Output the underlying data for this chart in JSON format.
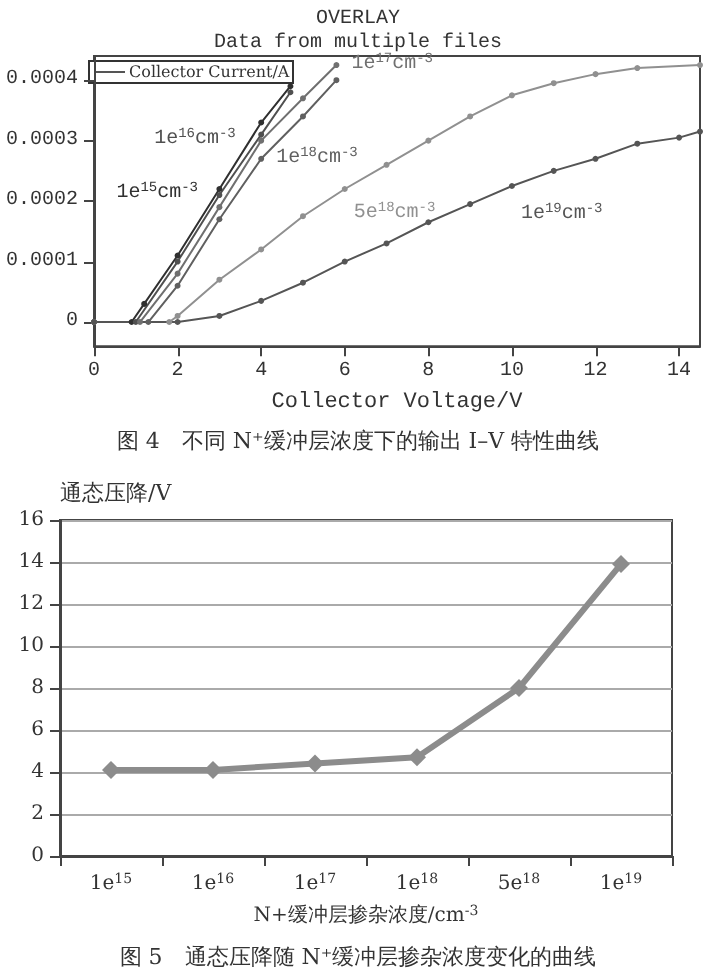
{
  "chart_data": [
    {
      "type": "line",
      "title": "OVERLAY",
      "subtitle": "Data from multiple files",
      "xlabel": "Collector Voltage/V",
      "legend_title": "Collector Current/A",
      "annotations": [
        "图 4　不同 N⁺缓冲层浓度下的输出 I–V 特性曲线"
      ],
      "xlim": [
        0,
        14.5
      ],
      "xticks": [
        0,
        2,
        4,
        6,
        8,
        10,
        12,
        14
      ],
      "ylim": [
        -4e-05,
        0.00044
      ],
      "yticks": [
        0,
        0.0001,
        0.0002,
        0.0003,
        0.0004
      ],
      "grid": false,
      "legend": "top left",
      "marker": "circle",
      "line_style": "solid",
      "series": [
        {
          "name": "1e$^{15}$cm$^{-3}$",
          "color": "#303030",
          "x": [
            0,
            0.9,
            1.2,
            2,
            3,
            4,
            4.7
          ],
          "values": [
            0,
            0,
            3e-05,
            0.00011,
            0.00022,
            0.00033,
            0.00039
          ]
        },
        {
          "name": "1e$^{16}$cm$^{-3}$",
          "color": "#505050",
          "x": [
            0,
            1,
            2,
            3,
            4,
            4.7
          ],
          "values": [
            0,
            0,
            0.0001,
            0.00021,
            0.00031,
            0.00038
          ]
        },
        {
          "name": "1e$^{17}$cm$^{-3}$",
          "color": "#707070",
          "x": [
            0,
            1.1,
            2,
            3,
            4,
            5,
            5.8
          ],
          "values": [
            0,
            0,
            8e-05,
            0.00019,
            0.0003,
            0.00037,
            0.000425
          ]
        },
        {
          "name": "1e$^{18}$cm$^{-3}$",
          "color": "#606060",
          "x": [
            0,
            1.3,
            2,
            3,
            4,
            5,
            5.8
          ],
          "values": [
            0,
            0,
            6e-05,
            0.00017,
            0.00027,
            0.00034,
            0.0004
          ]
        },
        {
          "name": "5e$^{18}$cm$^{-3}$",
          "color": "#909090",
          "x": [
            0,
            1.8,
            2,
            3,
            4,
            5,
            6,
            7,
            8,
            9,
            10,
            11,
            12,
            13,
            14.5
          ],
          "values": [
            0,
            0,
            1e-05,
            7e-05,
            0.00012,
            0.000175,
            0.00022,
            0.00026,
            0.0003,
            0.00034,
            0.000375,
            0.000395,
            0.00041,
            0.00042,
            0.000425
          ]
        },
        {
          "name": "1e$^{19}$cm$^{-3}$",
          "color": "#555555",
          "x": [
            0,
            2,
            3,
            4,
            5,
            6,
            7,
            8,
            9,
            10,
            11,
            12,
            13,
            14,
            14.5
          ],
          "values": [
            0,
            0,
            1e-05,
            3.5e-05,
            6.5e-05,
            0.0001,
            0.00013,
            0.000165,
            0.000195,
            0.000225,
            0.00025,
            0.00027,
            0.000295,
            0.000305,
            0.000315
          ]
        }
      ]
    },
    {
      "type": "line",
      "ylabel": "通态压降/V",
      "xlabel": "N+缓冲层掺杂浓度/cm$^{-3}$",
      "annotations": [
        "图 5　通态压降随 N⁺缓冲层掺杂浓度变化的曲线"
      ],
      "categories": [
        "1e$^{15}$",
        "1e$^{16}$",
        "1e$^{17}$",
        "1e$^{18}$",
        "5e$^{18}$",
        "1e$^{19}$"
      ],
      "ylim": [
        0,
        16
      ],
      "yticks": [
        0,
        2,
        4,
        6,
        8,
        10,
        12,
        14,
        16
      ],
      "grid": "y",
      "marker": "diamond",
      "line_style": "solid",
      "series": [
        {
          "color": "#8c8c8c",
          "values": [
            4.1,
            4.1,
            4.4,
            4.7,
            8.0,
            13.9
          ]
        }
      ]
    }
  ]
}
